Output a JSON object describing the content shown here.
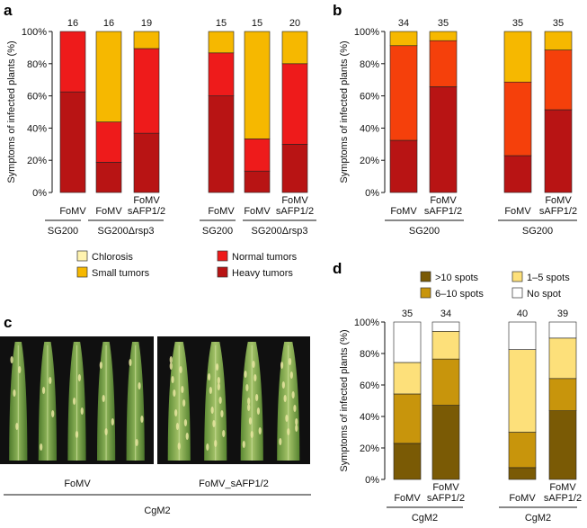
{
  "panels": {
    "a": "a",
    "b": "b",
    "c": "c",
    "d": "d"
  },
  "chart_data": [
    {
      "id": "a",
      "type": "bar",
      "stacked": true,
      "ylabel": "Symptoms of infected plants (%)",
      "ylim": [
        0,
        100
      ],
      "yticks": [
        "0%",
        "20%",
        "40%",
        "60%",
        "80%",
        "100%"
      ],
      "categories": [
        {
          "label": "FoMV",
          "label2": "",
          "n": "16"
        },
        {
          "label": "FoMV",
          "label2": "",
          "n": "16"
        },
        {
          "label": "FoMV",
          "label2": "sAFP1/2",
          "n": "19"
        },
        {
          "label": "FoMV",
          "label2": "",
          "n": "15"
        },
        {
          "label": "FoMV",
          "label2": "",
          "n": "15"
        },
        {
          "label": "FoMV",
          "label2": "sAFP1/2",
          "n": "20"
        }
      ],
      "groups": [
        {
          "label": "SG200",
          "bars": [
            0
          ]
        },
        {
          "label": "SG200Δrsp3",
          "bars": [
            1,
            2
          ]
        },
        {
          "label": "SG200",
          "bars": [
            3
          ]
        },
        {
          "label": "SG200Δrsp3",
          "bars": [
            4,
            5
          ]
        }
      ],
      "series": [
        {
          "name": "Heavy tumors",
          "color": "#b81414",
          "values": [
            62.5,
            18.8,
            36.8,
            60.0,
            13.3,
            30.0
          ]
        },
        {
          "name": "Normal tumors",
          "color": "#ee1b1b",
          "values": [
            37.5,
            25.0,
            52.6,
            26.7,
            20.0,
            50.0
          ]
        },
        {
          "name": "Small tumors",
          "color": "#f6b800",
          "values": [
            0,
            56.2,
            10.6,
            13.3,
            66.7,
            20.0
          ]
        },
        {
          "name": "Chlorosis",
          "color": "#fff3b0",
          "values": [
            0,
            0,
            0,
            0,
            0,
            0
          ]
        }
      ],
      "legend": [
        {
          "name": "Chlorosis",
          "color": "#fff3b0"
        },
        {
          "name": "Normal tumors",
          "color": "#ee1b1b"
        },
        {
          "name": "Small tumors",
          "color": "#f6b800"
        },
        {
          "name": "Heavy tumors",
          "color": "#b81414"
        }
      ]
    },
    {
      "id": "b",
      "type": "bar",
      "stacked": true,
      "ylabel": "Symptoms of infected plants (%)",
      "ylim": [
        0,
        100
      ],
      "yticks": [
        "0%",
        "20%",
        "40%",
        "60%",
        "80%",
        "100%"
      ],
      "categories": [
        {
          "label": "FoMV",
          "label2": "",
          "n": "34"
        },
        {
          "label": "FoMV",
          "label2": "sAFP1/2",
          "n": "35"
        },
        {
          "label": "FoMV",
          "label2": "",
          "n": "35"
        },
        {
          "label": "FoMV",
          "label2": "sAFP1/2",
          "n": "35"
        }
      ],
      "groups": [
        {
          "label": "SG200",
          "bars": [
            0,
            1
          ]
        },
        {
          "label": "SG200",
          "bars": [
            2,
            3
          ]
        }
      ],
      "series": [
        {
          "name": "Heavy tumors",
          "color": "#b81414",
          "values": [
            32.4,
            65.7,
            22.9,
            51.4
          ]
        },
        {
          "name": "Normal tumors",
          "color": "#f5400b",
          "values": [
            58.8,
            28.6,
            45.7,
            37.1
          ]
        },
        {
          "name": "Small tumors",
          "color": "#f6b800",
          "values": [
            8.8,
            5.7,
            31.4,
            11.5
          ]
        }
      ]
    },
    {
      "id": "d",
      "type": "bar",
      "stacked": true,
      "ylabel": "Symptoms of infected plants (%)",
      "ylim": [
        0,
        100
      ],
      "yticks": [
        "0%",
        "20%",
        "40%",
        "60%",
        "80%",
        "100%"
      ],
      "categories": [
        {
          "label": "FoMV",
          "label2": "",
          "n": "35"
        },
        {
          "label": "FoMV",
          "label2": "sAFP1/2",
          "n": "34"
        },
        {
          "label": "FoMV",
          "label2": "",
          "n": "40"
        },
        {
          "label": "FoMV",
          "label2": "sAFP1/2",
          "n": "39"
        }
      ],
      "groups": [
        {
          "label": "CgM2",
          "bars": [
            0,
            1
          ]
        },
        {
          "label": "CgM2",
          "bars": [
            2,
            3
          ]
        }
      ],
      "series": [
        {
          "name": ">10 spots",
          "color": "#7a5a05",
          "values": [
            22.9,
            47.1,
            7.5,
            43.6
          ]
        },
        {
          "name": "6–10 spots",
          "color": "#c8950c",
          "values": [
            31.4,
            29.4,
            22.5,
            20.5
          ]
        },
        {
          "name": "1–5 spots",
          "color": "#fde07a",
          "values": [
            20.0,
            17.6,
            52.5,
            25.7
          ]
        },
        {
          "name": "No spot",
          "color": "#ffffff",
          "values": [
            25.7,
            5.9,
            17.5,
            10.2
          ]
        }
      ],
      "legend": [
        {
          "name": ">10 spots",
          "color": "#7a5a05"
        },
        {
          "name": "1–5 spots",
          "color": "#fde07a"
        },
        {
          "name": "6–10 spots",
          "color": "#c8950c"
        },
        {
          "name": "No spot",
          "color": "#ffffff"
        }
      ]
    }
  ],
  "photo": {
    "left_label": "FoMV",
    "right_label": "FoMV_sAFP1/2",
    "bottom_label": "CgM2"
  }
}
